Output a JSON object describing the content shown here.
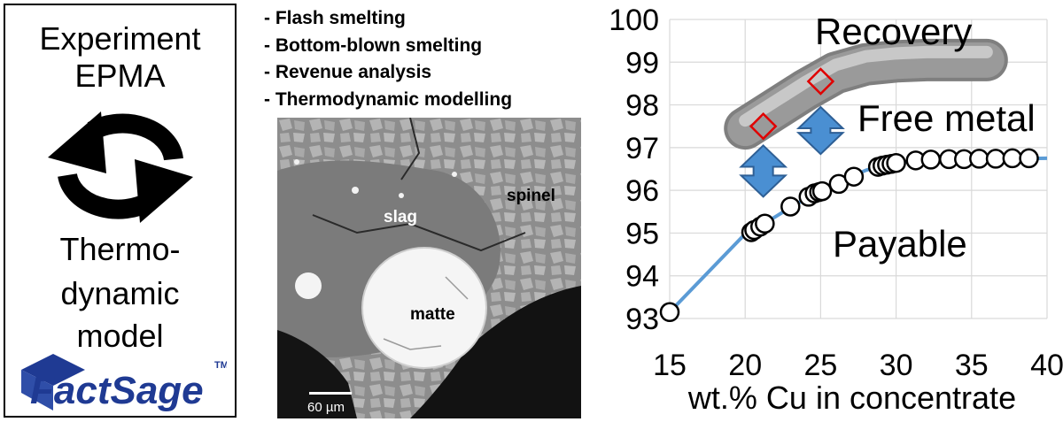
{
  "left_panel": {
    "line1": "Experiment",
    "line2": "EPMA",
    "cycle_icon": "cycle-arrows-icon",
    "line3": "Thermo-",
    "line4": "dynamic",
    "line5": "model",
    "logo_text_main": "FactSage",
    "logo_text_tm": "TM"
  },
  "bullets": [
    "- Flash smelting",
    "- Bottom-blown smelting",
    "- Revenue analysis",
    "- Thermodynamic modelling"
  ],
  "micrograph": {
    "labels": {
      "slag": "slag",
      "spinel": "spinel",
      "matte": "matte"
    },
    "scale_bar": "60 µm"
  },
  "chart_data": {
    "type": "scatter",
    "xlabel": "wt.% Cu in concentrate",
    "ylabel": "",
    "xlim": [
      15,
      40
    ],
    "ylim": [
      93,
      100
    ],
    "xticks": [
      "15",
      "20",
      "25",
      "30",
      "35",
      "40"
    ],
    "yticks": [
      "93",
      "94",
      "95",
      "96",
      "97",
      "98",
      "99",
      "100"
    ],
    "grid": true,
    "series": [
      {
        "name": "Payable",
        "marker": "circle",
        "color": "#000000",
        "points": [
          [
            15.0,
            93.15
          ],
          [
            20.4,
            95.02
          ],
          [
            20.6,
            95.07
          ],
          [
            21.0,
            95.15
          ],
          [
            21.3,
            95.22
          ],
          [
            23.0,
            95.62
          ],
          [
            24.2,
            95.85
          ],
          [
            24.6,
            95.93
          ],
          [
            24.9,
            95.96
          ],
          [
            25.1,
            95.98
          ],
          [
            26.2,
            96.15
          ],
          [
            27.2,
            96.32
          ],
          [
            28.8,
            96.55
          ],
          [
            29.1,
            96.58
          ],
          [
            29.4,
            96.6
          ],
          [
            29.7,
            96.62
          ],
          [
            30.0,
            96.64
          ],
          [
            31.3,
            96.7
          ],
          [
            32.3,
            96.72
          ],
          [
            33.5,
            96.73
          ],
          [
            34.5,
            96.73
          ],
          [
            35.5,
            96.74
          ],
          [
            36.6,
            96.74
          ],
          [
            37.7,
            96.75
          ],
          [
            38.8,
            96.75
          ]
        ]
      },
      {
        "name": "Recovery",
        "marker": "diamond",
        "color": "#e00000",
        "points": [
          [
            21.2,
            97.5
          ],
          [
            25.0,
            98.55
          ]
        ]
      }
    ],
    "fit_curve": {
      "color": "#5b9bd5",
      "x": [
        15,
        20,
        21,
        22,
        23,
        24,
        25,
        26,
        27,
        28,
        29,
        30,
        31,
        32,
        34,
        36,
        38,
        40
      ],
      "y": [
        93.15,
        94.98,
        95.18,
        95.38,
        95.6,
        95.8,
        95.97,
        96.15,
        96.32,
        96.47,
        96.58,
        96.64,
        96.68,
        96.7,
        96.72,
        96.73,
        96.74,
        96.75
      ]
    },
    "recovery_band": {
      "color": "#9a9a9a",
      "x": [
        20,
        22,
        24,
        26,
        28,
        30,
        32,
        34,
        36
      ],
      "y": [
        97.45,
        97.9,
        98.35,
        98.75,
        98.95,
        99.02,
        99.05,
        99.05,
        99.05
      ]
    },
    "gap_arrows": [
      {
        "x": 21.2,
        "y_low": 95.85,
        "y_high": 97.05,
        "color": "#4a8fd2"
      },
      {
        "x": 25.0,
        "y_low": 96.85,
        "y_high": 97.95,
        "color": "#4a8fd2"
      }
    ],
    "annotations": {
      "recovery": "Recovery",
      "free_metal": "Free metal",
      "payable": "Payable"
    }
  }
}
